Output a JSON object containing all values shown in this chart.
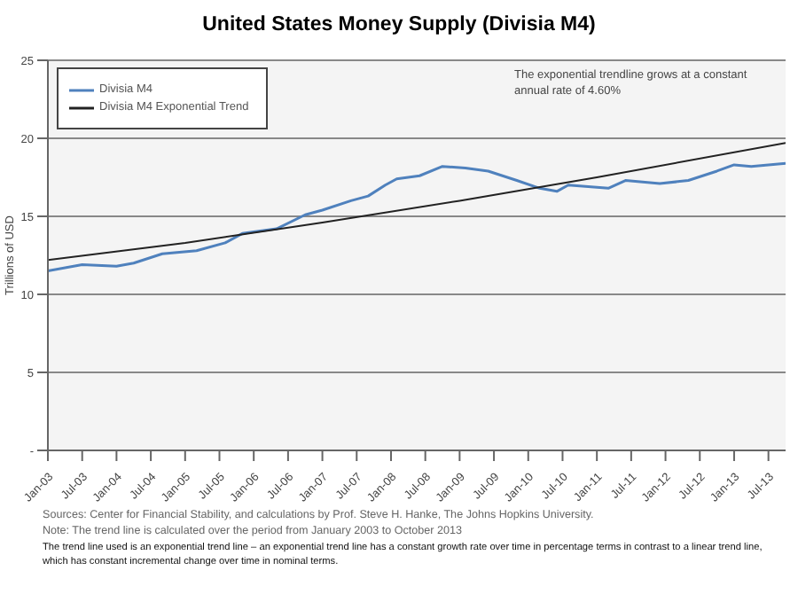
{
  "chart_data": {
    "type": "line",
    "title": "United States Money Supply (Divisia M4)",
    "ylabel": "Trillions of USD",
    "annotations": [
      "The exponential trendline grows at a constant annual rate of 4.60%",
      "Sources: Center for Financial Stability, and calculations by Prof. Steve H. Hanke, The Johns Hopkins University.",
      "Note: The trend line is calculated over the period from January 2003 to October 2013",
      "The trend line used is an exponential trend line – an exponential trend line has a constant growth rate over time in percentage terms in contrast to a linear trend line, which has constant incremental change over time in nominal terms."
    ],
    "series": [
      {
        "name": "Divisia M4",
        "color": "#4f81bd",
        "x": [
          "2003-01",
          "2003-07",
          "2004-01",
          "2004-04",
          "2004-09",
          "2005-03",
          "2005-08",
          "2005-11",
          "2006-05",
          "2006-10",
          "2007-01",
          "2007-06",
          "2007-09",
          "2007-12",
          "2008-02",
          "2008-06",
          "2008-10",
          "2009-02",
          "2009-06",
          "2009-11",
          "2010-03",
          "2010-06",
          "2010-08",
          "2011-03",
          "2011-06",
          "2011-12",
          "2012-05",
          "2012-10",
          "2013-01",
          "2013-04",
          "2013-10"
        ],
        "values": [
          11.5,
          11.9,
          11.8,
          12.0,
          12.6,
          12.8,
          13.3,
          13.9,
          14.2,
          15.1,
          15.4,
          16.0,
          16.3,
          17.0,
          17.4,
          17.6,
          18.2,
          18.1,
          17.9,
          17.3,
          16.8,
          16.6,
          17.0,
          16.8,
          17.3,
          17.1,
          17.3,
          17.9,
          18.3,
          18.2,
          18.4
        ]
      },
      {
        "name": "Divisia M4 Exponential Trend",
        "color": "#222222",
        "x": [
          "2003-01",
          "2005-01",
          "2007-01",
          "2009-01",
          "2011-01",
          "2013-10"
        ],
        "values": [
          12.2,
          13.3,
          14.6,
          16.0,
          17.5,
          19.7
        ]
      }
    ],
    "xlim": [
      "2003-01",
      "2013-10"
    ],
    "xticks": [
      {
        "value": "2003-01",
        "label": "Jan-03"
      },
      {
        "value": "2003-07",
        "label": "Jul-03"
      },
      {
        "value": "2004-01",
        "label": "Jan-04"
      },
      {
        "value": "2004-07",
        "label": "Jul-04"
      },
      {
        "value": "2005-01",
        "label": "Jan-05"
      },
      {
        "value": "2005-07",
        "label": "Jul-05"
      },
      {
        "value": "2006-01",
        "label": "Jan-06"
      },
      {
        "value": "2006-07",
        "label": "Jul-06"
      },
      {
        "value": "2007-01",
        "label": "Jan-07"
      },
      {
        "value": "2007-07",
        "label": "Jul-07"
      },
      {
        "value": "2008-01",
        "label": "Jan-08"
      },
      {
        "value": "2008-07",
        "label": "Jul-08"
      },
      {
        "value": "2009-01",
        "label": "Jan-09"
      },
      {
        "value": "2009-07",
        "label": "Jul-09"
      },
      {
        "value": "2010-01",
        "label": "Jan-10"
      },
      {
        "value": "2010-07",
        "label": "Jul-10"
      },
      {
        "value": "2011-01",
        "label": "Jan-11"
      },
      {
        "value": "2011-07",
        "label": "Jul-11"
      },
      {
        "value": "2012-01",
        "label": "Jan-12"
      },
      {
        "value": "2012-07",
        "label": "Jul-12"
      },
      {
        "value": "2013-01",
        "label": "Jan-13"
      },
      {
        "value": "2013-07",
        "label": "Jul-13"
      }
    ],
    "ylim": [
      0,
      25
    ],
    "yticks": [
      {
        "value": 0,
        "label": "-"
      },
      5,
      10,
      15,
      20,
      25
    ],
    "grid": "y",
    "legend": "top left",
    "marker": "none",
    "line_style": "solid"
  }
}
